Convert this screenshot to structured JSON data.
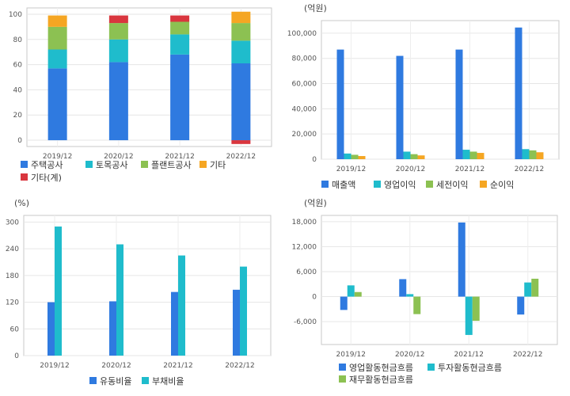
{
  "chart_data": [
    {
      "type": "bar",
      "stacked": true,
      "categories": [
        "2019/12",
        "2020/12",
        "2021/12",
        "2022/12"
      ],
      "series": [
        {
          "name": "주택공사",
          "color": "#2f7ae0",
          "values": [
            57,
            62,
            68,
            61
          ]
        },
        {
          "name": "토목공사",
          "color": "#1fbccc",
          "values": [
            15,
            18,
            16,
            18
          ]
        },
        {
          "name": "플랜트공사",
          "color": "#8cc152",
          "values": [
            18,
            13,
            10,
            14
          ]
        },
        {
          "name": "기타",
          "color": "#f5a623",
          "values": [
            9,
            0,
            0,
            9
          ]
        },
        {
          "name": "기타(계)",
          "color": "#d9363e",
          "values": [
            0,
            6,
            5,
            -3
          ]
        }
      ],
      "yticks": [
        0,
        20,
        40,
        60,
        80,
        100
      ],
      "ylim": [
        -5,
        105
      ],
      "grid": true,
      "legend": "bottom-left"
    },
    {
      "type": "bar",
      "unit": "(억원)",
      "categories": [
        "2019/12",
        "2020/12",
        "2021/12",
        "2022/12"
      ],
      "series": [
        {
          "name": "매출액",
          "color": "#2f7ae0",
          "values": [
            87000,
            82000,
            87000,
            104500
          ]
        },
        {
          "name": "영업이익",
          "color": "#1fbccc",
          "values": [
            4500,
            6000,
            7500,
            8000
          ]
        },
        {
          "name": "세전이익",
          "color": "#8cc152",
          "values": [
            3500,
            4000,
            6000,
            7000
          ]
        },
        {
          "name": "순이익",
          "color": "#f5a623",
          "values": [
            2500,
            3000,
            5000,
            5500
          ]
        }
      ],
      "ytick_labels": [
        "0",
        "20,000",
        "40,000",
        "60,000",
        "80,000",
        "100,000"
      ],
      "yticks": [
        0,
        20000,
        40000,
        60000,
        80000,
        100000
      ],
      "ylim": [
        0,
        110000
      ],
      "grid": true,
      "legend": "bottom-left"
    },
    {
      "type": "bar",
      "unit": "(%)",
      "categories": [
        "2019/12",
        "2020/12",
        "2021/12",
        "2022/12"
      ],
      "series": [
        {
          "name": "유동비율",
          "color": "#2f7ae0",
          "values": [
            120,
            122,
            143,
            148
          ]
        },
        {
          "name": "부채비율",
          "color": "#1fbccc",
          "values": [
            290,
            250,
            225,
            200
          ]
        }
      ],
      "yticks": [
        0,
        60,
        120,
        180,
        240,
        300
      ],
      "ylim": [
        0,
        315
      ],
      "grid": true,
      "legend": "bottom-center"
    },
    {
      "type": "bar",
      "unit": "(억원)",
      "categories": [
        "2019/12",
        "2020/12",
        "2021/12",
        "2022/12"
      ],
      "series": [
        {
          "name": "영업활동현금흐름",
          "color": "#2f7ae0",
          "values": [
            -3200,
            4200,
            17800,
            -4300
          ]
        },
        {
          "name": "투자활동현금흐름",
          "color": "#1fbccc",
          "values": [
            2700,
            600,
            -9200,
            3400
          ]
        },
        {
          "name": "재무활동현금흐름",
          "color": "#8cc152",
          "values": [
            1100,
            -4200,
            -5800,
            4300
          ]
        }
      ],
      "ytick_labels": [
        "-6,000",
        "0",
        "6,000",
        "12,000",
        "18,000"
      ],
      "yticks": [
        -6000,
        0,
        6000,
        12000,
        18000
      ],
      "ylim": [
        -11500,
        19500
      ],
      "grid": true,
      "legend": "bottom-center"
    }
  ]
}
